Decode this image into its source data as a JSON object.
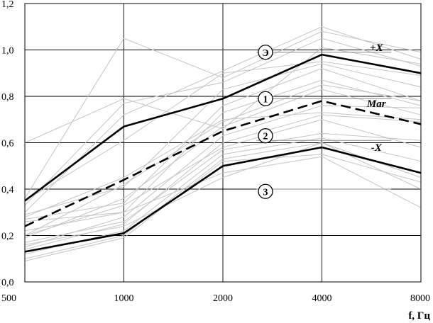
{
  "chart_data": {
    "type": "line",
    "title": "",
    "xlabel": "f, Гц",
    "ylabel": "",
    "categories": [
      "500",
      "1000",
      "2000",
      "4000",
      "8000"
    ],
    "ylim": [
      0,
      1.2
    ],
    "yticks": [
      "0,0",
      "0,2",
      "0,4",
      "0,6",
      "0,8",
      "1,0",
      "1,2"
    ],
    "grid": true,
    "series": [
      {
        "name": "+X",
        "values": [
          0.35,
          0.67,
          0.79,
          0.98,
          0.9
        ],
        "style": "solid-bold"
      },
      {
        "name": "Mar",
        "values": [
          0.24,
          0.44,
          0.65,
          0.78,
          0.68
        ],
        "style": "dashed-bold"
      },
      {
        "name": "-X",
        "values": [
          0.13,
          0.21,
          0.5,
          0.58,
          0.47
        ],
        "style": "solid-bold"
      }
    ],
    "background_series": [
      [
        0.36,
        1.05,
        0.88,
        1.08,
        0.99
      ],
      [
        0.33,
        0.77,
        0.86,
        1.05,
        0.93
      ],
      [
        0.3,
        0.72,
        0.91,
        1.1,
        0.96
      ],
      [
        0.6,
        0.79,
        0.66,
        1.01,
        0.94
      ],
      [
        0.35,
        0.61,
        0.9,
        0.95,
        0.89
      ],
      [
        0.29,
        0.41,
        0.83,
        0.94,
        0.84
      ],
      [
        0.27,
        0.34,
        0.76,
        0.92,
        0.78
      ],
      [
        0.22,
        0.3,
        0.73,
        0.87,
        0.76
      ],
      [
        0.2,
        0.42,
        0.69,
        0.85,
        0.78
      ],
      [
        0.19,
        0.36,
        0.67,
        0.83,
        0.72
      ],
      [
        0.15,
        0.28,
        0.63,
        0.76,
        0.75
      ],
      [
        0.14,
        0.25,
        0.6,
        0.72,
        0.69
      ],
      [
        0.17,
        0.26,
        0.57,
        0.64,
        0.61
      ],
      [
        0.12,
        0.22,
        0.55,
        0.62,
        0.52
      ],
      [
        0.1,
        0.2,
        0.53,
        0.6,
        0.45
      ],
      [
        0.09,
        0.19,
        0.52,
        0.55,
        0.43
      ],
      [
        0.26,
        0.3,
        0.47,
        0.54,
        0.32
      ],
      [
        0.16,
        0.24,
        0.45,
        0.6,
        0.4
      ],
      [
        0.2,
        0.33,
        0.58,
        0.7,
        0.58
      ],
      [
        0.28,
        0.45,
        0.7,
        0.73,
        0.7
      ]
    ],
    "annotations": [
      {
        "text": "+X",
        "x": 3.55,
        "y": 1.01,
        "italic": true
      },
      {
        "text": "Mar",
        "x": 3.55,
        "y": 0.77,
        "italic": true
      },
      {
        "text": "-X",
        "x": 3.55,
        "y": 0.58,
        "italic": true
      },
      {
        "text": "Э",
        "x": 2.43,
        "y": 0.99,
        "circled": true
      },
      {
        "text": "1",
        "x": 2.43,
        "y": 0.79,
        "circled": true
      },
      {
        "text": "2",
        "x": 2.43,
        "y": 0.63,
        "circled": true
      },
      {
        "text": "3",
        "x": 2.43,
        "y": 0.39,
        "circled": true
      }
    ],
    "zone_lines": [
      {
        "x0": 2.34,
        "x1": 3.7,
        "y": 0.99
      },
      {
        "x0": 2.34,
        "x1": 3.7,
        "y": 0.79
      },
      {
        "x0": 2.34,
        "x1": 3.7,
        "y": 0.61
      },
      {
        "x0": 2.34,
        "x1": 3.7,
        "y": 0.4
      }
    ]
  }
}
